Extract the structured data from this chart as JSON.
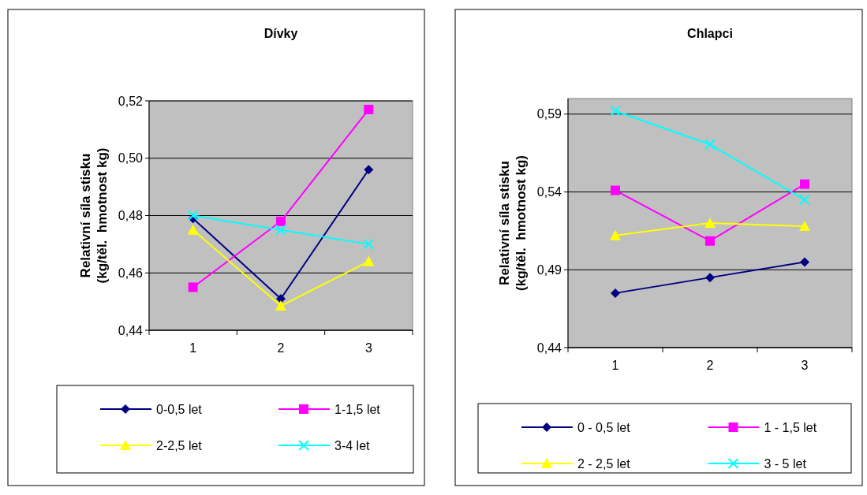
{
  "chart_data": [
    {
      "type": "line",
      "title": "Dívky",
      "ylabel": "Relativní síla stisku\n(kg/těl.  hmotnost kg)",
      "categories": [
        "1",
        "2",
        "3"
      ],
      "ylim": [
        0.44,
        0.52
      ],
      "yticks": [
        {
          "value": 0.44,
          "label": "0,44"
        },
        {
          "value": 0.46,
          "label": "0,46"
        },
        {
          "value": 0.48,
          "label": "0,48"
        },
        {
          "value": 0.5,
          "label": "0,50"
        },
        {
          "value": 0.52,
          "label": "0,52"
        }
      ],
      "grid": "y",
      "legend": "bottom",
      "series": [
        {
          "name": "0-0,5 let",
          "color": "#000080",
          "marker": "diamond",
          "values": [
            0.479,
            0.451,
            0.496
          ]
        },
        {
          "name": "1-1,5 let",
          "color": "#ff00ff",
          "marker": "square",
          "values": [
            0.455,
            0.478,
            0.517
          ]
        },
        {
          "name": "2-2,5 let",
          "color": "#ffff00",
          "marker": "triangle",
          "values": [
            0.475,
            0.4485,
            0.464
          ]
        },
        {
          "name": "3-4 let",
          "color": "#00ffff",
          "marker": "cross",
          "values": [
            0.48,
            0.475,
            0.47
          ]
        }
      ]
    },
    {
      "type": "line",
      "title": "Chlapci",
      "ylabel": "Relativní síla stisku\n(kg/těl.  hmotnost kg)",
      "categories": [
        "1",
        "2",
        "3"
      ],
      "ylim": [
        0.44,
        0.6
      ],
      "yticks": [
        {
          "value": 0.44,
          "label": "0,44"
        },
        {
          "value": 0.49,
          "label": "0,49"
        },
        {
          "value": 0.54,
          "label": "0,54"
        },
        {
          "value": 0.59,
          "label": "0,59"
        }
      ],
      "grid": "y",
      "legend": "bottom",
      "series": [
        {
          "name": "0 - 0,5 let",
          "color": "#000080",
          "marker": "diamond",
          "values": [
            0.475,
            0.485,
            0.495
          ]
        },
        {
          "name": "1 - 1,5 let",
          "color": "#ff00ff",
          "marker": "square",
          "values": [
            0.541,
            0.5085,
            0.545
          ]
        },
        {
          "name": "2 - 2,5 let",
          "color": "#ffff00",
          "marker": "triangle",
          "values": [
            0.512,
            0.52,
            0.518
          ]
        },
        {
          "name": "3 - 5 let",
          "color": "#00ffff",
          "marker": "cross",
          "values": [
            0.592,
            0.5705,
            0.535
          ]
        }
      ]
    }
  ]
}
